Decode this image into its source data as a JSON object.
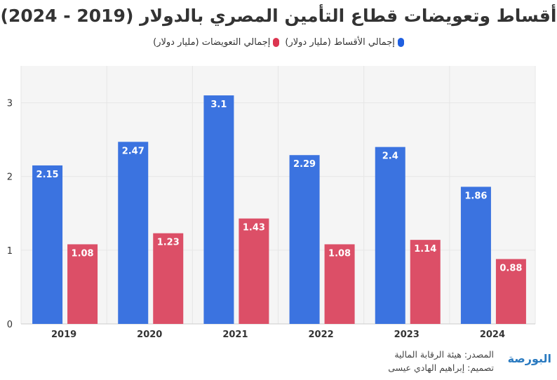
{
  "chart_data": {
    "type": "bar",
    "title": "أقساط وتعويضات قطاع التأمين المصري بالدولار (2019 - 2024)",
    "categories": [
      "2019",
      "2020",
      "2021",
      "2022",
      "2023",
      "2024"
    ],
    "series": [
      {
        "name": "إجمالي الأقساط (مليار دولار)",
        "color": "#3b73e0",
        "values": [
          2.15,
          2.47,
          3.1,
          2.29,
          2.4,
          1.86
        ]
      },
      {
        "name": "إجمالي التعويضات (مليار دولار)",
        "color": "#dc4f67",
        "values": [
          1.08,
          1.23,
          1.43,
          1.08,
          1.14,
          0.88
        ]
      }
    ],
    "yticks": [
      0,
      1,
      2,
      3
    ],
    "ylim": [
      0,
      3.5
    ],
    "grid": true,
    "legend": "top"
  },
  "footer": {
    "source": "المصدر: هيئة الرقابة المالية",
    "design": "تصميم: إبراهيم الهادي عيسى"
  },
  "logo": "البورصة"
}
